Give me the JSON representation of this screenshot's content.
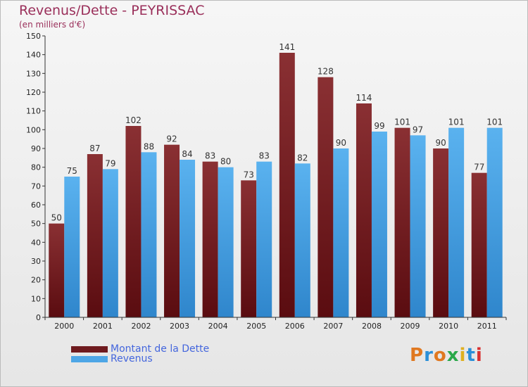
{
  "chart_data": {
    "type": "bar",
    "title": "Revenus/Dette - PEYRISSAC",
    "subtitle": "(en milliers d'€)",
    "categories": [
      "2000",
      "2001",
      "2002",
      "2003",
      "2004",
      "2005",
      "2006",
      "2007",
      "2008",
      "2009",
      "2010",
      "2011"
    ],
    "series": [
      {
        "name": "Montant de la Dette",
        "color": "#7a1e22",
        "values": [
          50,
          87,
          102,
          92,
          83,
          73,
          141,
          128,
          114,
          101,
          90,
          77
        ]
      },
      {
        "name": "Revenus",
        "color": "#4ea6e6",
        "values": [
          75,
          79,
          88,
          84,
          80,
          83,
          82,
          90,
          99,
          97,
          101,
          101
        ]
      }
    ],
    "ylim": [
      0,
      150
    ],
    "yticks": [
      0,
      10,
      20,
      30,
      40,
      50,
      60,
      70,
      80,
      90,
      100,
      110,
      120,
      130,
      140,
      150
    ],
    "grid": false,
    "legend_position": "bottom-left"
  },
  "logo": {
    "text": "Proxiti"
  }
}
